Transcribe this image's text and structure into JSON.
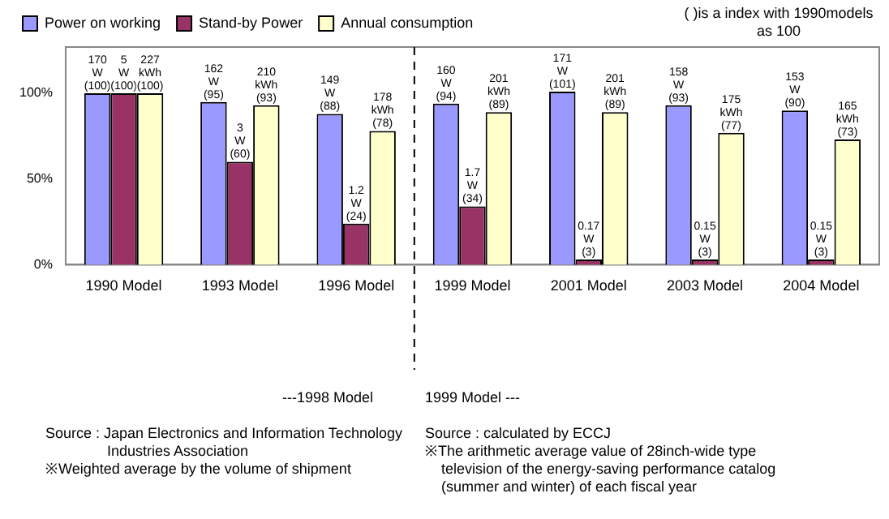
{
  "chart_data": {
    "type": "bar",
    "categories": [
      "1990 Model",
      "1993 Model",
      "1996 Model",
      "1999 Model",
      "2001 Model",
      "2003 Model",
      "2004 Model"
    ],
    "series": [
      {
        "name": "Power on working",
        "color": "#9999ff",
        "values": [
          100,
          95,
          88,
          94,
          101,
          93,
          90
        ],
        "value_labels": [
          "170 W (100)",
          "162 W (95)",
          "149 W (88)",
          "160 W (94)",
          "171 W (101)",
          "158 W (93)",
          "153 W (90)"
        ]
      },
      {
        "name": "Stand-by Power",
        "color": "#993366",
        "values": [
          100,
          60,
          24,
          34,
          3,
          3,
          3
        ],
        "value_labels": [
          "5 W (100)",
          "3 W (60)",
          "1.2 W (24)",
          "1.7 W (34)",
          "0.17 W (3)",
          "0.15 W (3)",
          "0.15 W (3)"
        ]
      },
      {
        "name": "Annual consumption",
        "color": "#ffffcc",
        "values": [
          100,
          93,
          78,
          89,
          89,
          77,
          73
        ],
        "value_labels": [
          "227 kWh (100)",
          "210 kWh (93)",
          "178 kWh (78)",
          "201 kWh (89)",
          "201 kWh (89)",
          "175 kWh (77)",
          "165 kWh (73)"
        ]
      }
    ],
    "ylim": [
      0,
      127
    ],
    "yticks": [
      {
        "value": 0,
        "label": "0%"
      },
      {
        "value": 50,
        "label": "50%"
      },
      {
        "value": 100,
        "label": "100%"
      }
    ],
    "grid": false,
    "legend": "top",
    "annotations": [
      "(  )is a index with 1990models as 100",
      "---1998 Model",
      "1999 Model ---",
      "Source : Japan Electronics and Information Technology Industries Association",
      "※Weighted average by the volume of shipment",
      "Source : calculated by ECCJ",
      "※The arithmetic average value of 28inch-wide  type television of the energy-saving performance catalog (summer and winter)  of each fiscal year"
    ]
  }
}
